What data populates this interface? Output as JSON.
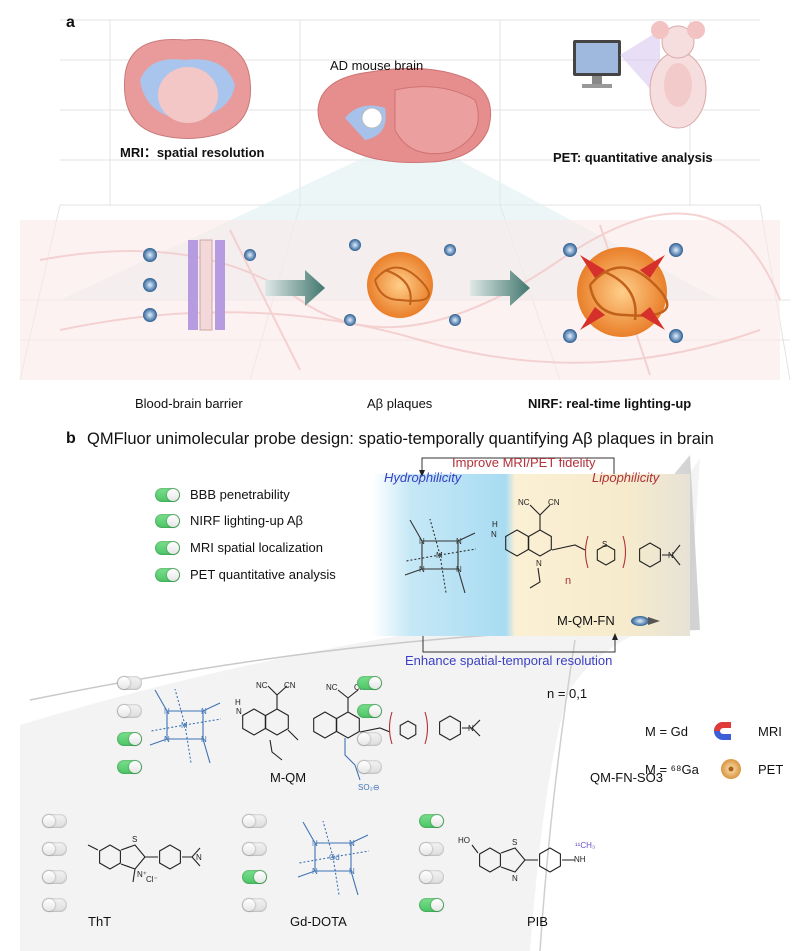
{
  "panel_a": {
    "label": "a",
    "mri_caption": "MRI：spatial resolution",
    "center_caption": "AD mouse brain",
    "pet_caption": "PET: quantitative analysis",
    "bbb_caption": "Blood-brain barrier",
    "plaques_caption": "Aβ plaques",
    "nirf_caption": "NIRF: real-time lighting-up"
  },
  "panel_b": {
    "label": "b",
    "title": "QMFluor unimolecular probe design: spatio-temporally quantifying Aβ plaques in brain",
    "improve_label": "Improve MRI/PET fidelity",
    "enhance_label": "Enhance spatial-temporal resolution",
    "hydrophilicity": "Hydrophilicity",
    "lipophilicity": "Lipophilicity",
    "probe_name": "M-QM-FN",
    "probe_n": "n",
    "legend": [
      {
        "label": "BBB penetrability",
        "on": true
      },
      {
        "label": "NIRF lighting-up Aβ",
        "on": true
      },
      {
        "label": "MRI spatial localization",
        "on": true
      },
      {
        "label": "PET quantitative analysis",
        "on": true
      }
    ],
    "compounds": [
      {
        "name": "M-QM",
        "toggles": [
          false,
          false,
          true,
          true
        ]
      },
      {
        "name": "QM-FN-SO3",
        "toggles": [
          true,
          true,
          false,
          false
        ]
      },
      {
        "name": "ThT",
        "toggles": [
          false,
          false,
          false,
          false
        ]
      },
      {
        "name": "Gd-DOTA",
        "toggles": [
          false,
          false,
          true,
          false
        ]
      },
      {
        "name": "PIB",
        "toggles": [
          true,
          false,
          false,
          true
        ]
      }
    ],
    "n_values": "n = 0,1",
    "metals": [
      {
        "formula": "M = Gd",
        "modality": "MRI",
        "icon": "magnet-icon"
      },
      {
        "formula": "M = ⁶⁸Ga",
        "modality": "PET",
        "icon": "radiation-icon"
      }
    ],
    "atoms": {
      "nc": "NC",
      "cn": "CN",
      "n": "N",
      "h": "H",
      "m": "M",
      "gd": "Gd",
      "s": "S",
      "o": "O",
      "ho": "HO",
      "cl": "Cl⁻",
      "nplus": "N⁺",
      "ch3": "¹¹CH₃",
      "nh": "NH",
      "so3": "SO₃⊖"
    }
  },
  "colors": {
    "toggle_on": "#5fd47a",
    "hydro_blue": "#3a3fc4",
    "lipo_red": "#b0323a",
    "chelate_blue": "#3f73b5",
    "brain_pink": "#e69a9a",
    "brain_blue": "#a7c2ea",
    "plaque_orange": "#f0953a"
  }
}
